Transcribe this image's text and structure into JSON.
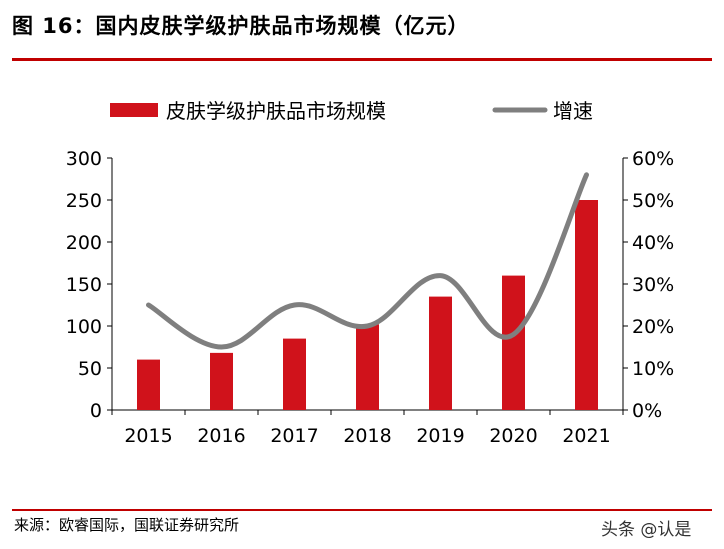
{
  "header": {
    "title": "图 16：国内皮肤学级护肤品市场规模（亿元）"
  },
  "footer": {
    "source": "来源：欧睿国际，国联证券研究所",
    "watermark": "头条 @认是"
  },
  "colors": {
    "bar": "#d0121b",
    "line": "#7f7f7f",
    "accent": "#c00000"
  },
  "chart_data": {
    "type": "bar+line",
    "categories": [
      "2015",
      "2016",
      "2017",
      "2018",
      "2019",
      "2020",
      "2021"
    ],
    "series": [
      {
        "name": "皮肤学级护肤品市场规模",
        "type": "bar",
        "axis": "left",
        "values": [
          60,
          68,
          85,
          102,
          135,
          160,
          250
        ]
      },
      {
        "name": "增速",
        "type": "line",
        "axis": "right",
        "smooth": true,
        "values": [
          25,
          15,
          25,
          20,
          32,
          18,
          56
        ]
      }
    ],
    "ylim_left": [
      0,
      300
    ],
    "yticks_left": [
      "0",
      "50",
      "100",
      "150",
      "200",
      "250",
      "300"
    ],
    "ylim_right": [
      0,
      60
    ],
    "yticks_right": [
      "0%",
      "10%",
      "20%",
      "30%",
      "40%",
      "50%",
      "60%"
    ],
    "legend_position": "top",
    "grid": false
  }
}
